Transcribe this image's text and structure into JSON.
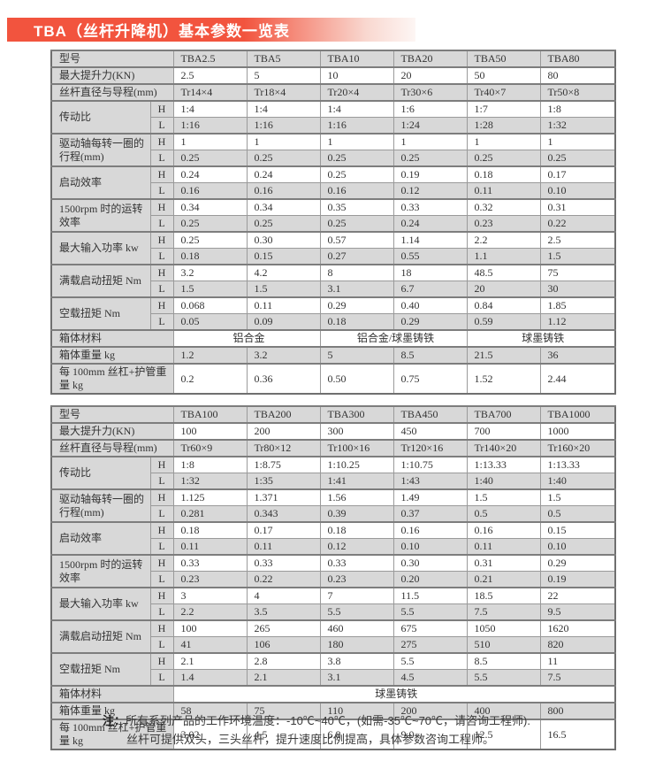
{
  "page": {
    "title": "TBA（丝杆升降机）基本参数一览表"
  },
  "colors": {
    "banner_red": "#f2543e",
    "cell_shade": "#d8d8d8",
    "table_border": "#9a9a9a",
    "text": "#333333"
  },
  "hl": [
    "H",
    "L"
  ],
  "note": {
    "prefix": "注：",
    "line1": "所有系列产品的工作环境温度：-10℃~40℃，(如需-35℃~70℃，请咨询工程师).",
    "line2": "丝杆可提供双头，三头丝杆，提升速度比例提高，具体参数咨询工程师。"
  },
  "tables": [
    {
      "name": "spec-table-small-models",
      "rows": [
        {
          "kind": "simple",
          "key": "model",
          "label": "型号",
          "values": [
            "TBA2.5",
            "TBA5",
            "TBA10",
            "TBA20",
            "TBA50",
            "TBA80"
          ],
          "shade": true
        },
        {
          "kind": "simple",
          "key": "max-lift-force-kn",
          "label": "最大提升力(KN)",
          "values": [
            "2.5",
            "5",
            "10",
            "20",
            "50",
            "80"
          ],
          "shade": false
        },
        {
          "kind": "simple",
          "key": "screw-diameter-lead-mm",
          "label": "丝杆直径与导程(mm)",
          "values": [
            "Tr14×4",
            "Tr18×4",
            "Tr20×4",
            "Tr30×6",
            "Tr40×7",
            "Tr50×8"
          ],
          "shade": true
        },
        {
          "kind": "hl",
          "key": "transmission-ratio",
          "label": "传动比",
          "h": [
            "1:4",
            "1:4",
            "1:4",
            "1:6",
            "1:7",
            "1:8"
          ],
          "l": [
            "1:16",
            "1:16",
            "1:16",
            "1:24",
            "1:28",
            "1:32"
          ]
        },
        {
          "kind": "hl",
          "key": "travel-per-revolution-mm",
          "label": "驱动轴每转一圈的行程(mm)",
          "h": [
            "1",
            "1",
            "1",
            "1",
            "1",
            "1"
          ],
          "l": [
            "0.25",
            "0.25",
            "0.25",
            "0.25",
            "0.25",
            "0.25"
          ]
        },
        {
          "kind": "hl",
          "key": "starting-efficiency",
          "label": "启动效率",
          "h": [
            "0.24",
            "0.24",
            "0.25",
            "0.19",
            "0.18",
            "0.17"
          ],
          "l": [
            "0.16",
            "0.16",
            "0.16",
            "0.12",
            "0.11",
            "0.10"
          ]
        },
        {
          "kind": "hl",
          "key": "running-efficiency-1500rpm",
          "label": "1500rpm 时的运转效率",
          "h": [
            "0.34",
            "0.34",
            "0.35",
            "0.33",
            "0.32",
            "0.31"
          ],
          "l": [
            "0.25",
            "0.25",
            "0.25",
            "0.24",
            "0.23",
            "0.22"
          ]
        },
        {
          "kind": "hl",
          "key": "max-input-power-kw",
          "label": "最大输入功率 kw",
          "h": [
            "0.25",
            "0.30",
            "0.57",
            "1.14",
            "2.2",
            "2.5"
          ],
          "l": [
            "0.18",
            "0.15",
            "0.27",
            "0.55",
            "1.1",
            "1.5"
          ]
        },
        {
          "kind": "hl",
          "key": "full-load-starting-torque-nm",
          "label": "满载启动扭矩 Nm",
          "h": [
            "3.2",
            "4.2",
            "8",
            "18",
            "48.5",
            "75"
          ],
          "l": [
            "1.5",
            "1.5",
            "3.1",
            "6.7",
            "20",
            "30"
          ]
        },
        {
          "kind": "hl",
          "key": "no-load-torque-nm",
          "label": "空载扭矩 Nm",
          "h": [
            "0.068",
            "0.11",
            "0.29",
            "0.40",
            "0.84",
            "1.85"
          ],
          "l": [
            "0.05",
            "0.09",
            "0.18",
            "0.29",
            "0.59",
            "1.12"
          ]
        },
        {
          "kind": "merged",
          "key": "housing-material",
          "label": "箱体材料",
          "cells": [
            {
              "span": 2,
              "text": "铝合金"
            },
            {
              "span": 2,
              "text": "铝合金/球墨铸铁"
            },
            {
              "span": 2,
              "text": "球墨铸铁"
            }
          ],
          "shade": false
        },
        {
          "kind": "simple",
          "key": "housing-weight-kg",
          "label": "箱体重量 kg",
          "values": [
            "1.2",
            "3.2",
            "5",
            "8.5",
            "21.5",
            "36"
          ],
          "shade": true
        },
        {
          "kind": "simple",
          "key": "weight-per-100mm-screw-kg",
          "label": "每 100mm 丝杠+护管重量 kg",
          "values": [
            "0.2",
            "0.36",
            "0.50",
            "0.75",
            "1.52",
            "2.44"
          ],
          "shade": false
        }
      ]
    },
    {
      "name": "spec-table-large-models",
      "rows": [
        {
          "kind": "simple",
          "key": "model",
          "label": "型号",
          "values": [
            "TBA100",
            "TBA200",
            "TBA300",
            "TBA450",
            "TBA700",
            "TBA1000"
          ],
          "shade": true
        },
        {
          "kind": "simple",
          "key": "max-lift-force-kn",
          "label": "最大提升力(KN)",
          "values": [
            "100",
            "200",
            "300",
            "450",
            "700",
            "1000"
          ],
          "shade": false
        },
        {
          "kind": "simple",
          "key": "screw-diameter-lead-mm",
          "label": "丝杆直径与导程(mm)",
          "values": [
            "Tr60×9",
            "Tr80×12",
            "Tr100×16",
            "Tr120×16",
            "Tr140×20",
            "Tr160×20"
          ],
          "shade": true
        },
        {
          "kind": "hl",
          "key": "transmission-ratio",
          "label": "传动比",
          "h": [
            "1:8",
            "1:8.75",
            "1:10.25",
            "1:10.75",
            "1:13.33",
            "1:13.33"
          ],
          "l": [
            "1:32",
            "1:35",
            "1:41",
            "1:43",
            "1:40",
            "1:40"
          ]
        },
        {
          "kind": "hl",
          "key": "travel-per-revolution-mm",
          "label": "驱动轴每转一圈的行程(mm)",
          "h": [
            "1.125",
            "1.371",
            "1.56",
            "1.49",
            "1.5",
            "1.5"
          ],
          "l": [
            "0.281",
            "0.343",
            "0.39",
            "0.37",
            "0.5",
            "0.5"
          ]
        },
        {
          "kind": "hl",
          "key": "starting-efficiency",
          "label": "启动效率",
          "h": [
            "0.18",
            "0.17",
            "0.18",
            "0.16",
            "0.16",
            "0.15"
          ],
          "l": [
            "0.11",
            "0.11",
            "0.12",
            "0.10",
            "0.11",
            "0.10"
          ]
        },
        {
          "kind": "hl",
          "key": "running-efficiency-1500rpm",
          "label": "1500rpm 时的运转效率",
          "h": [
            "0.33",
            "0.33",
            "0.33",
            "0.30",
            "0.31",
            "0.29"
          ],
          "l": [
            "0.23",
            "0.22",
            "0.23",
            "0.20",
            "0.21",
            "0.19"
          ]
        },
        {
          "kind": "hl",
          "key": "max-input-power-kw",
          "label": "最大输入功率 kw",
          "h": [
            "3",
            "4",
            "7",
            "11.5",
            "18.5",
            "22"
          ],
          "l": [
            "2.2",
            "3.5",
            "5.5",
            "5.5",
            "7.5",
            "9.5"
          ]
        },
        {
          "kind": "hl",
          "key": "full-load-starting-torque-nm",
          "label": "满载启动扭矩 Nm",
          "h": [
            "100",
            "265",
            "460",
            "675",
            "1050",
            "1620"
          ],
          "l": [
            "41",
            "106",
            "180",
            "275",
            "510",
            "820"
          ]
        },
        {
          "kind": "hl",
          "key": "no-load-torque-nm",
          "label": "空载扭矩 Nm",
          "h": [
            "2.1",
            "2.8",
            "3.8",
            "5.5",
            "8.5",
            "11"
          ],
          "l": [
            "1.4",
            "2.1",
            "3.1",
            "4.5",
            "5.5",
            "7.5"
          ]
        },
        {
          "kind": "merged",
          "key": "housing-material",
          "label": "箱体材料",
          "cells": [
            {
              "span": 6,
              "text": "球墨铸铁"
            }
          ],
          "shade": false
        },
        {
          "kind": "simple",
          "key": "housing-weight-kg",
          "label": "箱体重量 kg",
          "values": [
            "58",
            "75",
            "110",
            "200",
            "400",
            "800"
          ],
          "shade": true
        },
        {
          "kind": "simple",
          "key": "weight-per-100mm-screw-kg",
          "label": "每 100mm 丝杠+护管重量 kg",
          "values": [
            "3.02",
            "4.5",
            "6.8",
            "9.0",
            "12.5",
            "16.5"
          ],
          "shade": false
        }
      ]
    }
  ]
}
